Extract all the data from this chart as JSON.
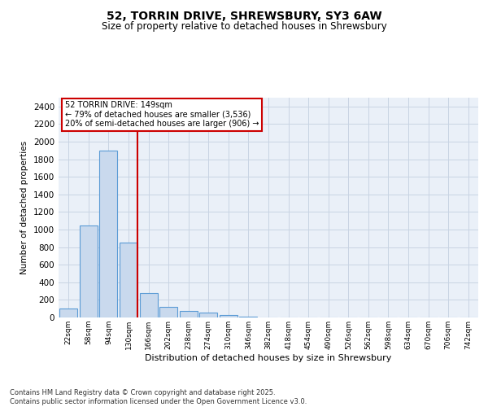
{
  "title_line1": "52, TORRIN DRIVE, SHREWSBURY, SY3 6AW",
  "title_line2": "Size of property relative to detached houses in Shrewsbury",
  "xlabel": "Distribution of detached houses by size in Shrewsbury",
  "ylabel": "Number of detached properties",
  "bin_labels": [
    "22sqm",
    "58sqm",
    "94sqm",
    "130sqm",
    "166sqm",
    "202sqm",
    "238sqm",
    "274sqm",
    "310sqm",
    "346sqm",
    "382sqm",
    "418sqm",
    "454sqm",
    "490sqm",
    "526sqm",
    "562sqm",
    "598sqm",
    "634sqm",
    "670sqm",
    "706sqm",
    "742sqm"
  ],
  "bar_values": [
    100,
    1050,
    1900,
    850,
    275,
    125,
    75,
    60,
    30,
    10,
    3,
    0,
    0,
    0,
    0,
    0,
    0,
    0,
    0,
    0,
    0
  ],
  "bar_color": "#c9d9ed",
  "bar_edgecolor": "#5b9bd5",
  "annotation_title": "52 TORRIN DRIVE: 149sqm",
  "annotation_line1": "← 79% of detached houses are smaller (3,536)",
  "annotation_line2": "20% of semi-detached houses are larger (906) →",
  "annotation_box_color": "#ffffff",
  "annotation_box_edgecolor": "#cc0000",
  "redline_color": "#cc0000",
  "ylim": [
    0,
    2500
  ],
  "yticks": [
    0,
    200,
    400,
    600,
    800,
    1000,
    1200,
    1400,
    1600,
    1800,
    2000,
    2200,
    2400
  ],
  "grid_color": "#c8d4e3",
  "background_color": "#eaf0f8",
  "footnote_line1": "Contains HM Land Registry data © Crown copyright and database right 2025.",
  "footnote_line2": "Contains public sector information licensed under the Open Government Licence v3.0."
}
